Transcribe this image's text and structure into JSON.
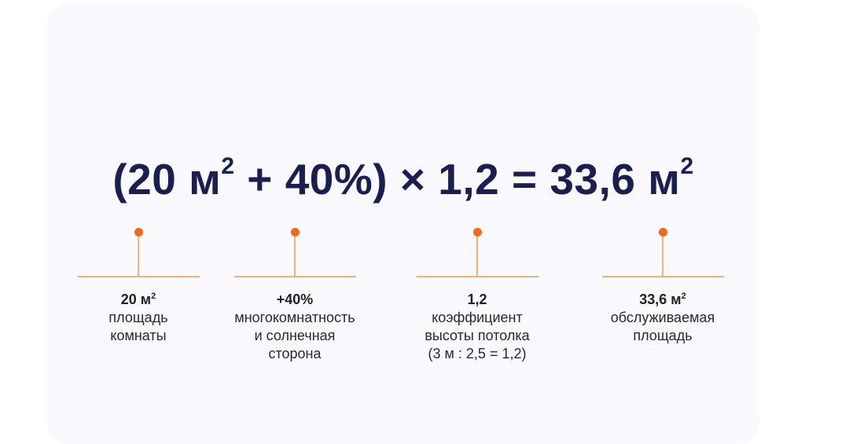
{
  "formula": {
    "open": "(20 м",
    "sup1": "2",
    "middle": " + 40%) × 1,2 = 33,6 м",
    "sup2": "2"
  },
  "items": [
    {
      "value": "20 м",
      "sup": "2",
      "lines": [
        "площадь",
        "комнаты"
      ]
    },
    {
      "value": "+40%",
      "sup": "",
      "lines": [
        "многокомнатность",
        "и солнечная",
        "сторона"
      ]
    },
    {
      "value": "1,2",
      "sup": "",
      "lines": [
        "коэффициент",
        "высоты потолка",
        "(3 м : 2,5 = 1,2)"
      ]
    },
    {
      "value": "33,6 м",
      "sup": "2",
      "lines": [
        "обслуживаемая",
        "площадь"
      ]
    }
  ],
  "colors": {
    "accent": "#f06a1c",
    "connector": "#f2b07e",
    "text": "#1b1f4f",
    "card": "#f8f8fd"
  }
}
